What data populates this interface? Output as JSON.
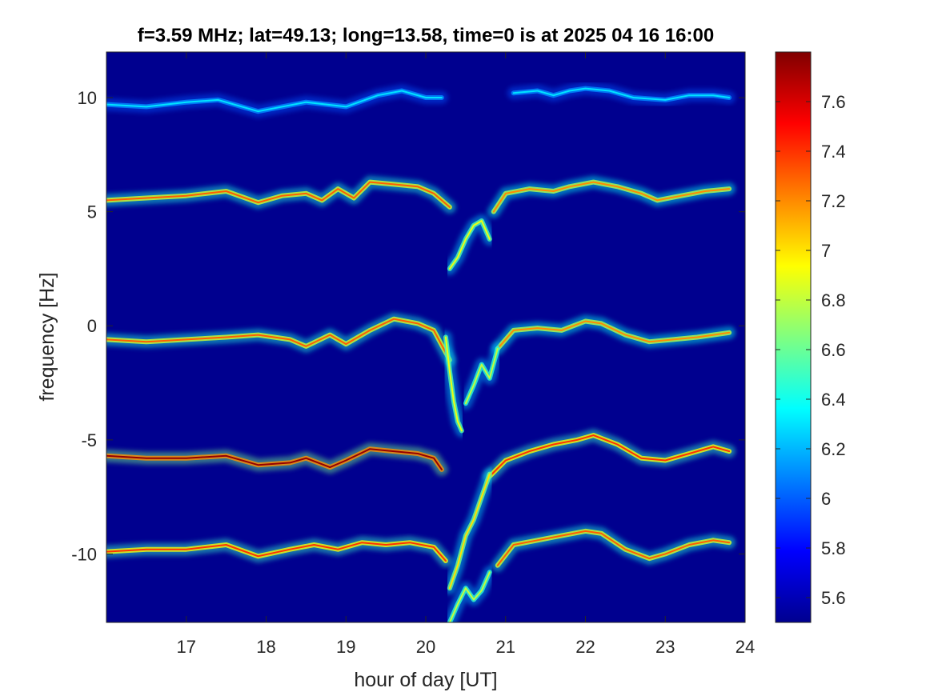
{
  "chart_data": {
    "type": "heatmap",
    "title": "f=3.59 MHz;  lat=49.13; long=13.58, time=0 is at 2025 04 16 16:00",
    "xlabel": "hour of day [UT]",
    "ylabel": "frequency [Hz]",
    "xlim": [
      16.0,
      24.0
    ],
    "ylim": [
      -13.0,
      12.0
    ],
    "xticks": [
      17,
      18,
      19,
      20,
      21,
      22,
      23,
      24
    ],
    "yticks": [
      -10,
      -5,
      0,
      5,
      10
    ],
    "colormap": "jet",
    "clim": [
      5.5,
      7.8
    ],
    "colorbar_ticks": [
      5.6,
      5.8,
      6,
      6.2,
      6.4,
      6.6,
      6.8,
      7,
      7.2,
      7.4,
      7.6
    ],
    "background_value": 5.5,
    "traces": [
      {
        "offset_hz": 10,
        "peak_value": 6.3,
        "x": [
          16.0,
          16.5,
          17.0,
          17.4,
          17.9,
          18.5,
          19.0,
          19.4,
          19.7,
          20.0,
          20.2
        ],
        "y": [
          9.7,
          9.6,
          9.8,
          9.9,
          9.4,
          9.8,
          9.6,
          10.1,
          10.3,
          10.0,
          10.0
        ]
      },
      {
        "offset_hz": 10,
        "peak_value": 6.3,
        "x": [
          21.1,
          21.4,
          21.6,
          21.8,
          22.0,
          22.3,
          22.6,
          23.0,
          23.3,
          23.6,
          23.8
        ],
        "y": [
          10.2,
          10.3,
          10.1,
          10.3,
          10.4,
          10.3,
          10.0,
          9.9,
          10.1,
          10.1,
          10.0
        ]
      },
      {
        "offset_hz": 5,
        "peak_value": 7.3,
        "x": [
          16.0,
          16.5,
          17.0,
          17.5,
          17.9,
          18.2,
          18.5,
          18.7,
          18.9,
          19.1,
          19.3,
          19.6,
          19.9,
          20.1,
          20.3
        ],
        "y": [
          5.5,
          5.6,
          5.7,
          5.9,
          5.4,
          5.7,
          5.8,
          5.5,
          6.0,
          5.6,
          6.3,
          6.2,
          6.1,
          5.8,
          5.2
        ]
      },
      {
        "offset_hz": 5,
        "peak_value": 7.2,
        "x": [
          20.85,
          21.0,
          21.3,
          21.6,
          21.8,
          22.1,
          22.4,
          22.7,
          22.9,
          23.2,
          23.5,
          23.8
        ],
        "y": [
          5.0,
          5.8,
          6.0,
          5.9,
          6.1,
          6.3,
          6.1,
          5.8,
          5.5,
          5.7,
          5.9,
          6.0
        ]
      },
      {
        "offset_hz": 0,
        "peak_value": 7.3,
        "x": [
          16.0,
          16.5,
          17.0,
          17.5,
          17.9,
          18.3,
          18.5,
          18.8,
          19.0,
          19.3,
          19.6,
          19.9,
          20.1,
          20.3
        ],
        "y": [
          -0.6,
          -0.7,
          -0.6,
          -0.5,
          -0.4,
          -0.6,
          -0.9,
          -0.4,
          -0.8,
          -0.2,
          0.3,
          0.1,
          -0.2,
          -1.5
        ]
      },
      {
        "offset_hz": 0,
        "peak_value": 7.2,
        "x": [
          20.9,
          21.1,
          21.4,
          21.7,
          22.0,
          22.2,
          22.5,
          22.8,
          23.1,
          23.4,
          23.8
        ],
        "y": [
          -1.0,
          -0.2,
          -0.1,
          -0.2,
          0.2,
          0.1,
          -0.4,
          -0.7,
          -0.6,
          -0.5,
          -0.3
        ]
      },
      {
        "offset_hz": -5,
        "peak_value": 7.75,
        "x": [
          16.0,
          16.5,
          17.0,
          17.5,
          17.9,
          18.3,
          18.5,
          18.8,
          19.0,
          19.3,
          19.6,
          19.9,
          20.1,
          20.2
        ],
        "y": [
          -5.7,
          -5.8,
          -5.8,
          -5.7,
          -6.1,
          -6.0,
          -5.8,
          -6.2,
          -5.9,
          -5.4,
          -5.5,
          -5.6,
          -5.8,
          -6.3
        ]
      },
      {
        "offset_hz": -5,
        "peak_value": 7.4,
        "x": [
          20.8,
          21.0,
          21.3,
          21.6,
          21.9,
          22.1,
          22.4,
          22.7,
          23.0,
          23.3,
          23.6,
          23.8
        ],
        "y": [
          -6.6,
          -5.9,
          -5.5,
          -5.2,
          -5.0,
          -4.8,
          -5.2,
          -5.8,
          -5.9,
          -5.6,
          -5.3,
          -5.5
        ]
      },
      {
        "offset_hz": -10,
        "peak_value": 7.4,
        "x": [
          16.0,
          16.5,
          17.0,
          17.5,
          17.9,
          18.3,
          18.6,
          18.9,
          19.2,
          19.5,
          19.8,
          20.1,
          20.25
        ],
        "y": [
          -9.9,
          -9.8,
          -9.8,
          -9.6,
          -10.1,
          -9.8,
          -9.6,
          -9.8,
          -9.5,
          -9.6,
          -9.5,
          -9.7,
          -10.3
        ]
      },
      {
        "offset_hz": -10,
        "peak_value": 7.3,
        "x": [
          20.9,
          21.1,
          21.4,
          21.7,
          22.0,
          22.2,
          22.5,
          22.8,
          23.0,
          23.3,
          23.6,
          23.8
        ],
        "y": [
          -10.5,
          -9.6,
          -9.4,
          -9.2,
          -9.0,
          -9.1,
          -9.8,
          -10.2,
          -10.0,
          -9.6,
          -9.4,
          -9.5
        ]
      },
      {
        "offset_hz": 0,
        "peak_value": 6.9,
        "x": [
          20.25,
          20.3,
          20.35,
          20.4,
          20.45
        ],
        "y": [
          -0.5,
          -2.0,
          -3.3,
          -4.2,
          -4.6
        ]
      },
      {
        "offset_hz": 5,
        "peak_value": 6.9,
        "x": [
          20.3,
          20.4,
          20.5,
          20.6,
          20.7,
          20.8
        ],
        "y": [
          2.5,
          3.0,
          3.8,
          4.4,
          4.6,
          3.8
        ]
      },
      {
        "offset_hz": 0,
        "peak_value": 6.8,
        "x": [
          20.5,
          20.6,
          20.7,
          20.8,
          20.9
        ],
        "y": [
          -3.4,
          -2.6,
          -1.7,
          -2.3,
          -1.0
        ]
      },
      {
        "offset_hz": -5,
        "peak_value": 7.0,
        "x": [
          20.3,
          20.4,
          20.5,
          20.6,
          20.7,
          20.75,
          20.8
        ],
        "y": [
          -11.5,
          -10.5,
          -9.2,
          -8.5,
          -7.5,
          -7.0,
          -6.5
        ]
      },
      {
        "offset_hz": -10,
        "peak_value": 6.8,
        "x": [
          20.3,
          20.4,
          20.5,
          20.6,
          20.7,
          20.8
        ],
        "y": [
          -13.0,
          -12.2,
          -11.5,
          -12.0,
          -11.6,
          -10.8
        ]
      }
    ]
  }
}
